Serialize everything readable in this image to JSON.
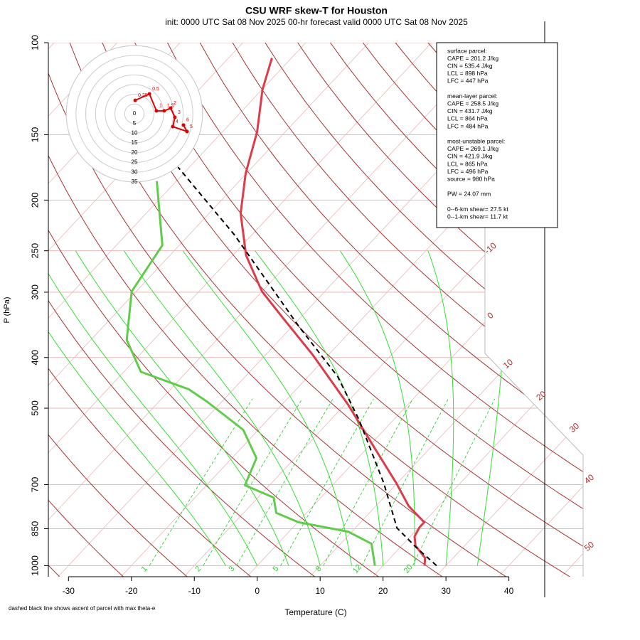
{
  "chart_data": {
    "type": "skewt",
    "title": "CSU WRF skew-T for Houston",
    "subtitle": "init: 0000 UTC Sat 08 Nov 2025    00-hr forecast valid 0000 UTC Sat 08 Nov 2025",
    "x_label": "Temperature (C)",
    "y_label": "P (hPa)",
    "footnote": "dashed black line shows ascent of parcel with max theta-e",
    "log_y": true,
    "ylim": [
      1050,
      100
    ],
    "yticks": [
      100,
      150,
      200,
      250,
      300,
      400,
      500,
      700,
      850,
      1000
    ],
    "xlim": [
      -33.2,
      51.8
    ],
    "xticks": [
      -30,
      -20,
      -10,
      0,
      10,
      20,
      30,
      40
    ],
    "series": [
      {
        "color": "#dc3c4a",
        "dash": false,
        "pressure": [
          1000,
          966,
          916,
          880,
          845,
          826,
          769,
          696,
          595,
          493,
          396,
          333,
          299,
          255,
          212,
          178,
          148,
          123,
          107
        ],
        "temperature": [
          26.6,
          25.5,
          22.2,
          20.7,
          20.1,
          20.1,
          15.2,
          9.9,
          1.1,
          -9.4,
          -22.4,
          -33.3,
          -40.0,
          -47.9,
          -55.0,
          -60.1,
          -64.5,
          -69.9,
          -73.1
        ]
      },
      {
        "color": "#5fcc4a",
        "dash": false,
        "pressure": [
          1000,
          908,
          861,
          826,
          793,
          741,
          702,
          623,
          550,
          486,
          460,
          426,
          370,
          299,
          244,
          184
        ],
        "temperature": [
          18.7,
          14.9,
          9.4,
          0.1,
          -4.8,
          -7.5,
          -13.9,
          -16.1,
          -22.4,
          -32.3,
          -37.1,
          -47.3,
          -54.3,
          -60.7,
          -62.7,
          -73.1
        ]
      },
      {
        "color": "#000000",
        "dash": true,
        "pressure": [
          1000,
          922,
          847,
          696,
          525,
          435,
          349,
          233,
          173
        ],
        "temperature": [
          28.5,
          22.5,
          16.6,
          7.9,
          -5.6,
          -15.3,
          -28.9,
          -52.8,
          -71.8
        ]
      }
    ],
    "isotherm_color": "#eab8b8",
    "isotherm_labels": [
      -10,
      0,
      10,
      20,
      30,
      40,
      50
    ],
    "isotherm_label_color": "#b03030",
    "dry_adiabats": [
      240,
      250,
      260,
      270,
      280,
      290,
      300,
      310,
      320,
      330,
      340,
      350,
      360,
      370,
      380,
      390,
      400,
      410,
      420,
      430,
      440,
      450,
      460,
      470
    ],
    "dry_adiabat_color": "#a83232",
    "moist_adiabats": [
      -5,
      0,
      5,
      10,
      15,
      20,
      25,
      30,
      35
    ],
    "moist_adiabat_color": "#33e033",
    "mixing_ratio_labels": [
      1,
      2,
      3,
      5,
      8,
      12,
      20
    ],
    "mixing_ratio_color": "#33cc33",
    "hodograph": {
      "color": "#e00000",
      "ring_labels": [
        0,
        5,
        10,
        15,
        20,
        25,
        30,
        35
      ],
      "labels": [
        0.25,
        0.5,
        1,
        1.5,
        2,
        3,
        4,
        5,
        6
      ],
      "u": [
        0.4,
        7.7,
        11.3,
        15.3,
        18.6,
        20.8,
        19.7,
        27.0,
        25.2
      ],
      "v": [
        6.9,
        10.2,
        1.5,
        1.5,
        2.9,
        -1.8,
        -6.6,
        -9.1,
        -5.8
      ]
    },
    "info_box": [
      [
        "surface parcel:",
        "CAPE = 201.2 J/kg",
        "CIN = 535.4 J/kg",
        "LCL = 898 hPa",
        "LFC = 447 hPa"
      ],
      [
        "mean-layer parcel:",
        "CAPE = 258.5 J/kg",
        "CIN = 431.7 J/kg",
        "LCL = 864 hPa",
        "LFC = 484 hPa"
      ],
      [
        "most-unstable parcel:",
        "CAPE = 269.1 J/kg",
        "CIN = 421.9 J/kg",
        "LCL = 865 hPa",
        "LFC = 496 hPa",
        "source = 980 hPa"
      ],
      [
        "PW =  24.07 mm"
      ],
      [
        "0--6-km shear= 27.5 kt",
        "0--1-km shear= 11.7 kt"
      ]
    ]
  }
}
